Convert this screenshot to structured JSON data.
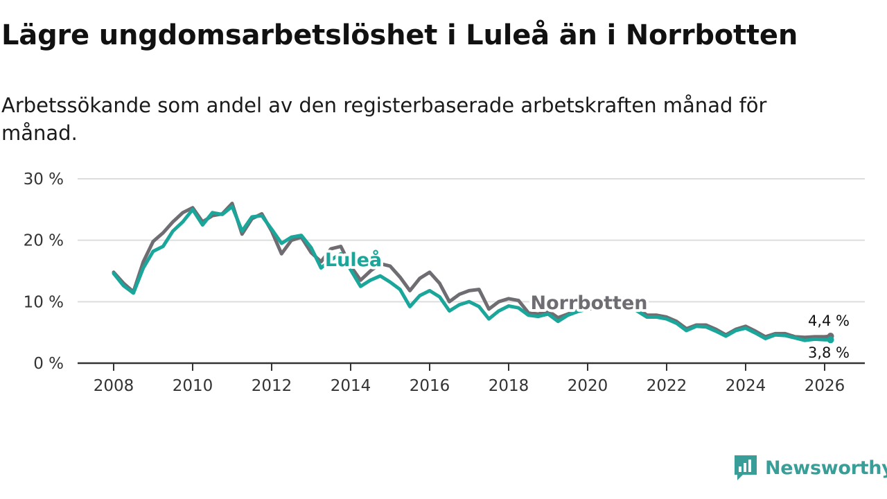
{
  "title": "Lägre ungdomsarbetslöshet i Luleå än i Norrbotten",
  "subtitle": "Arbetssökande som andel av den registerbaserade arbetskraften månad för månad.",
  "brand": "Newsworthy",
  "colors": {
    "lulea": "#1aa69a",
    "norrbotten": "#6f6c72",
    "grid": "#dddddd",
    "axis": "#333333",
    "brand": "#3a9e98"
  },
  "chart_data": {
    "type": "line",
    "title": "Lägre ungdomsarbetslöshet i Luleå än i Norrbotten",
    "xlabel": "",
    "ylabel": "",
    "xlim": [
      2007.5,
      2027.3
    ],
    "ylim": [
      0,
      30
    ],
    "y_ticks": [
      0,
      10,
      20,
      30
    ],
    "y_tick_labels": [
      "0 %",
      "10 %",
      "20 %",
      "30 %"
    ],
    "x_ticks": [
      2008,
      2010,
      2012,
      2014,
      2016,
      2018,
      2020,
      2022,
      2024,
      2026
    ],
    "x_tick_labels": [
      "2008",
      "2010",
      "2012",
      "2014",
      "2016",
      "2018",
      "2020",
      "2022",
      "2024",
      "2026"
    ],
    "series": [
      {
        "name": "Norrbotten",
        "label": "Norrbotten",
        "last_value_label": "4,4 %",
        "x": [
          2008.0,
          2008.25,
          2008.5,
          2008.75,
          2009.0,
          2009.25,
          2009.5,
          2009.75,
          2010.0,
          2010.25,
          2010.5,
          2010.75,
          2011.0,
          2011.25,
          2011.5,
          2011.75,
          2012.0,
          2012.25,
          2012.5,
          2012.75,
          2013.0,
          2013.25,
          2013.5,
          2013.75,
          2014.0,
          2014.25,
          2014.5,
          2014.75,
          2015.0,
          2015.25,
          2015.5,
          2015.75,
          2016.0,
          2016.25,
          2016.5,
          2016.75,
          2017.0,
          2017.25,
          2017.5,
          2017.75,
          2018.0,
          2018.25,
          2018.5,
          2018.75,
          2019.0,
          2019.25,
          2019.5,
          2019.75,
          2020.0,
          2020.25,
          2020.5,
          2020.75,
          2021.0,
          2021.25,
          2021.5,
          2021.75,
          2022.0,
          2022.25,
          2022.5,
          2022.75,
          2023.0,
          2023.25,
          2023.5,
          2023.75,
          2024.0,
          2024.25,
          2024.5,
          2024.75,
          2025.0,
          2025.25,
          2025.5,
          2025.75,
          2026.0,
          2026.15
        ],
        "values": [
          14.8,
          13.0,
          11.6,
          16.5,
          19.8,
          21.2,
          23.0,
          24.5,
          25.3,
          23.0,
          24.0,
          24.3,
          26.0,
          21.0,
          23.5,
          24.3,
          21.5,
          17.8,
          20.0,
          20.5,
          18.0,
          16.5,
          18.6,
          19.0,
          15.8,
          13.5,
          15.0,
          16.2,
          15.8,
          14.0,
          11.8,
          13.8,
          14.8,
          13.0,
          10.0,
          11.2,
          11.8,
          12.0,
          8.8,
          10.0,
          10.5,
          10.2,
          8.2,
          8.0,
          8.5,
          7.4,
          8.0,
          8.6,
          9.0,
          9.2,
          9.8,
          10.2,
          10.6,
          9.0,
          7.8,
          7.8,
          7.5,
          6.8,
          5.6,
          6.2,
          6.2,
          5.5,
          4.6,
          5.5,
          6.0,
          5.2,
          4.3,
          4.8,
          4.8,
          4.3,
          4.2,
          4.3,
          4.3,
          4.4
        ]
      },
      {
        "name": "Luleå",
        "label": "Luleå",
        "last_value_label": "3,8 %",
        "x": [
          2008.0,
          2008.25,
          2008.5,
          2008.75,
          2009.0,
          2009.25,
          2009.5,
          2009.75,
          2010.0,
          2010.25,
          2010.5,
          2010.75,
          2011.0,
          2011.25,
          2011.5,
          2011.75,
          2012.0,
          2012.25,
          2012.5,
          2012.75,
          2013.0,
          2013.25,
          2013.5,
          2013.75,
          2014.0,
          2014.25,
          2014.5,
          2014.75,
          2015.0,
          2015.25,
          2015.5,
          2015.75,
          2016.0,
          2016.25,
          2016.5,
          2016.75,
          2017.0,
          2017.25,
          2017.5,
          2017.75,
          2018.0,
          2018.25,
          2018.5,
          2018.75,
          2019.0,
          2019.25,
          2019.5,
          2019.75,
          2020.0,
          2020.25,
          2020.5,
          2020.75,
          2021.0,
          2021.25,
          2021.5,
          2021.75,
          2022.0,
          2022.25,
          2022.5,
          2022.75,
          2023.0,
          2023.25,
          2023.5,
          2023.75,
          2024.0,
          2024.25,
          2024.5,
          2024.75,
          2025.0,
          2025.25,
          2025.5,
          2025.75,
          2026.0,
          2026.15
        ],
        "values": [
          14.6,
          12.6,
          11.4,
          15.5,
          18.2,
          19.0,
          21.5,
          23.0,
          25.0,
          22.5,
          24.5,
          24.2,
          25.5,
          21.5,
          23.8,
          24.0,
          21.8,
          19.5,
          20.5,
          20.8,
          18.8,
          15.5,
          16.8,
          17.8,
          15.2,
          12.5,
          13.5,
          14.2,
          13.2,
          12.0,
          9.2,
          11.0,
          11.8,
          10.8,
          8.5,
          9.5,
          10.0,
          9.2,
          7.2,
          8.5,
          9.3,
          9.0,
          7.8,
          7.6,
          8.0,
          6.8,
          7.8,
          8.4,
          8.8,
          9.0,
          9.5,
          9.8,
          10.2,
          8.5,
          7.5,
          7.5,
          7.2,
          6.5,
          5.3,
          6.0,
          5.9,
          5.2,
          4.4,
          5.3,
          5.7,
          4.9,
          4.0,
          4.6,
          4.5,
          4.1,
          3.7,
          3.9,
          3.8,
          3.8
        ]
      }
    ]
  }
}
